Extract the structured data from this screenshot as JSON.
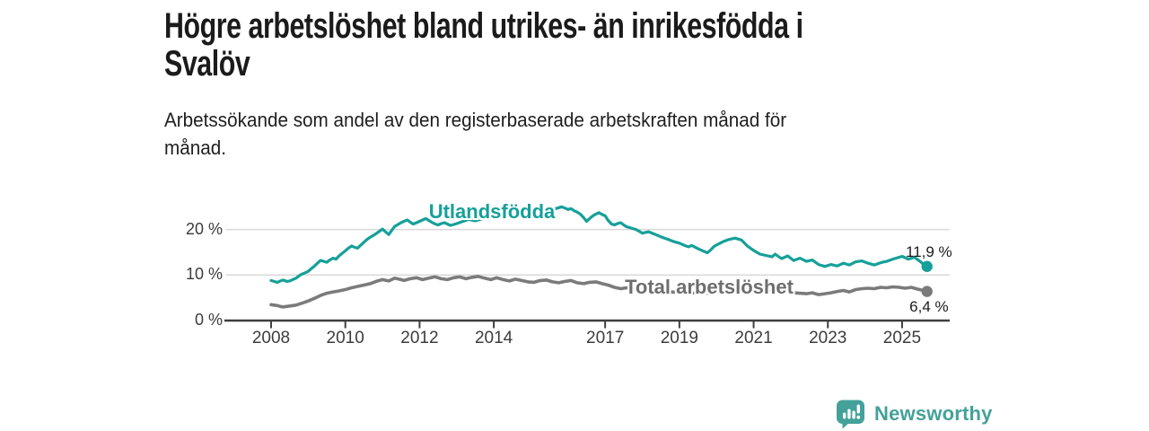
{
  "header": {
    "title_lines": [
      "Högre arbetslöshet bland utrikes- än inrikesfödda i",
      "Svalöv"
    ],
    "subtitle_lines": [
      "Arbetssökande som andel av den registerbaserade arbetskraften månad för",
      "månad."
    ]
  },
  "theme": {
    "background": "#ffffff",
    "accent_teal": "#16a099",
    "series_gray": "#7b7b7b",
    "grid_color": "#d9d9d9",
    "axis_color": "#3f3f3f",
    "tick_text_color": "#3c3c3c",
    "annotation_color": "#1b1b1b",
    "logo_color": "#44a19a"
  },
  "chart_data": {
    "type": "line",
    "title": "Högre arbetslöshet bland utrikes- än inrikesfödda i Svalöv",
    "subtitle": "Arbetssökande som andel av den registerbaserade arbetskraften månad för månad.",
    "xlabel": "",
    "ylabel": "",
    "grid": "horizontal-only",
    "x_axis": {
      "ticks": [
        2008,
        2010,
        2012,
        2014,
        2017,
        2019,
        2021,
        2023,
        2025
      ]
    },
    "y_axis": {
      "ticks": [
        {
          "value": 0,
          "label": "0 %"
        },
        {
          "value": 10,
          "label": "10 %"
        },
        {
          "value": 20,
          "label": "20 %"
        }
      ],
      "max": 26
    },
    "series": [
      {
        "name": "Utlandsfödda",
        "color": "#16a099",
        "label_color": "#16a099",
        "end_label": "11,9 %",
        "end_value": 11.9,
        "points": [
          [
            2008.0,
            8.8
          ],
          [
            2008.08,
            8.6
          ],
          [
            2008.17,
            8.4
          ],
          [
            2008.25,
            8.7
          ],
          [
            2008.33,
            8.9
          ],
          [
            2008.42,
            8.6
          ],
          [
            2008.5,
            8.7
          ],
          [
            2008.58,
            9.0
          ],
          [
            2008.67,
            9.3
          ],
          [
            2008.75,
            9.8
          ],
          [
            2008.83,
            10.2
          ],
          [
            2008.92,
            10.5
          ],
          [
            2009.0,
            10.8
          ],
          [
            2009.08,
            11.4
          ],
          [
            2009.17,
            12.0
          ],
          [
            2009.25,
            12.6
          ],
          [
            2009.33,
            13.2
          ],
          [
            2009.42,
            13.0
          ],
          [
            2009.5,
            12.8
          ],
          [
            2009.58,
            13.3
          ],
          [
            2009.67,
            13.7
          ],
          [
            2009.75,
            13.5
          ],
          [
            2009.83,
            14.2
          ],
          [
            2009.92,
            14.8
          ],
          [
            2010.0,
            15.3
          ],
          [
            2010.08,
            15.9
          ],
          [
            2010.17,
            16.4
          ],
          [
            2010.25,
            16.1
          ],
          [
            2010.33,
            15.9
          ],
          [
            2010.42,
            16.6
          ],
          [
            2010.5,
            17.2
          ],
          [
            2010.58,
            17.8
          ],
          [
            2010.67,
            18.3
          ],
          [
            2010.75,
            18.7
          ],
          [
            2010.83,
            19.1
          ],
          [
            2010.92,
            19.6
          ],
          [
            2011.0,
            20.1
          ],
          [
            2011.08,
            19.5
          ],
          [
            2011.17,
            18.9
          ],
          [
            2011.25,
            19.8
          ],
          [
            2011.33,
            20.7
          ],
          [
            2011.42,
            21.1
          ],
          [
            2011.5,
            21.5
          ],
          [
            2011.58,
            21.8
          ],
          [
            2011.67,
            22.1
          ],
          [
            2011.75,
            21.6
          ],
          [
            2011.83,
            21.2
          ],
          [
            2011.92,
            21.5
          ],
          [
            2012.0,
            21.8
          ],
          [
            2012.08,
            22.1
          ],
          [
            2012.17,
            22.4
          ],
          [
            2012.25,
            22.0
          ],
          [
            2012.33,
            21.6
          ],
          [
            2012.42,
            21.2
          ],
          [
            2012.5,
            21.0
          ],
          [
            2012.58,
            21.3
          ],
          [
            2012.67,
            21.5
          ],
          [
            2012.75,
            21.2
          ],
          [
            2012.83,
            20.9
          ],
          [
            2012.92,
            21.1
          ],
          [
            2013.0,
            21.3
          ],
          [
            2013.17,
            21.8
          ],
          [
            2013.33,
            22.2
          ],
          [
            2013.5,
            21.9
          ],
          [
            2013.67,
            22.3
          ],
          [
            2013.83,
            22.6
          ],
          [
            2014.0,
            22.9
          ],
          [
            2014.17,
            23.2
          ],
          [
            2014.33,
            22.9
          ],
          [
            2014.5,
            23.3
          ],
          [
            2014.67,
            23.6
          ],
          [
            2014.83,
            23.4
          ],
          [
            2015.0,
            23.8
          ],
          [
            2015.17,
            24.1
          ],
          [
            2015.33,
            23.9
          ],
          [
            2015.5,
            24.2
          ],
          [
            2015.67,
            24.6
          ],
          [
            2015.83,
            25.0
          ],
          [
            2015.92,
            24.7
          ],
          [
            2016.0,
            24.4
          ],
          [
            2016.08,
            24.6
          ],
          [
            2016.17,
            24.1
          ],
          [
            2016.25,
            23.8
          ],
          [
            2016.33,
            23.4
          ],
          [
            2016.42,
            22.6
          ],
          [
            2016.5,
            21.8
          ],
          [
            2016.58,
            22.4
          ],
          [
            2016.67,
            23.0
          ],
          [
            2016.75,
            23.4
          ],
          [
            2016.83,
            23.7
          ],
          [
            2016.92,
            23.3
          ],
          [
            2017.0,
            23.0
          ],
          [
            2017.08,
            22.0
          ],
          [
            2017.17,
            21.2
          ],
          [
            2017.25,
            21.0
          ],
          [
            2017.33,
            21.3
          ],
          [
            2017.42,
            21.5
          ],
          [
            2017.5,
            21.0
          ],
          [
            2017.58,
            20.6
          ],
          [
            2017.67,
            20.4
          ],
          [
            2017.75,
            20.2
          ],
          [
            2017.83,
            20.0
          ],
          [
            2017.92,
            19.6
          ],
          [
            2018.0,
            19.2
          ],
          [
            2018.17,
            19.5
          ],
          [
            2018.33,
            19.0
          ],
          [
            2018.5,
            18.4
          ],
          [
            2018.67,
            17.9
          ],
          [
            2018.83,
            17.4
          ],
          [
            2019.0,
            17.0
          ],
          [
            2019.17,
            16.4
          ],
          [
            2019.25,
            16.2
          ],
          [
            2019.33,
            16.5
          ],
          [
            2019.5,
            15.8
          ],
          [
            2019.58,
            15.5
          ],
          [
            2019.75,
            14.9
          ],
          [
            2019.83,
            15.4
          ],
          [
            2019.92,
            16.2
          ],
          [
            2020.0,
            16.6
          ],
          [
            2020.17,
            17.3
          ],
          [
            2020.33,
            17.8
          ],
          [
            2020.5,
            18.1
          ],
          [
            2020.67,
            17.7
          ],
          [
            2020.83,
            16.4
          ],
          [
            2021.0,
            15.4
          ],
          [
            2021.08,
            15.0
          ],
          [
            2021.17,
            14.6
          ],
          [
            2021.33,
            14.3
          ],
          [
            2021.5,
            14.0
          ],
          [
            2021.58,
            14.6
          ],
          [
            2021.75,
            13.6
          ],
          [
            2021.92,
            14.2
          ],
          [
            2022.08,
            13.2
          ],
          [
            2022.25,
            13.7
          ],
          [
            2022.42,
            13.0
          ],
          [
            2022.58,
            13.3
          ],
          [
            2022.75,
            12.3
          ],
          [
            2022.92,
            11.9
          ],
          [
            2023.08,
            12.3
          ],
          [
            2023.25,
            12.0
          ],
          [
            2023.42,
            12.6
          ],
          [
            2023.58,
            12.2
          ],
          [
            2023.75,
            12.9
          ],
          [
            2023.92,
            13.1
          ],
          [
            2024.08,
            12.6
          ],
          [
            2024.25,
            12.2
          ],
          [
            2024.42,
            12.7
          ],
          [
            2024.58,
            13.0
          ],
          [
            2024.75,
            13.5
          ],
          [
            2024.92,
            13.9
          ],
          [
            2025.0,
            14.1
          ],
          [
            2025.17,
            13.5
          ],
          [
            2025.33,
            13.9
          ],
          [
            2025.5,
            12.9
          ],
          [
            2025.58,
            12.3
          ],
          [
            2025.67,
            11.9
          ]
        ]
      },
      {
        "name": "Total arbetslöshet",
        "color": "#7b7b7b",
        "label_color": "#6e6e6e",
        "end_label": "6,4 %",
        "end_value": 6.4,
        "points": [
          [
            2008.0,
            3.5
          ],
          [
            2008.17,
            3.3
          ],
          [
            2008.25,
            3.1
          ],
          [
            2008.33,
            3.0
          ],
          [
            2008.5,
            3.2
          ],
          [
            2008.67,
            3.4
          ],
          [
            2008.83,
            3.8
          ],
          [
            2009.0,
            4.3
          ],
          [
            2009.17,
            4.9
          ],
          [
            2009.33,
            5.5
          ],
          [
            2009.5,
            6.0
          ],
          [
            2009.67,
            6.3
          ],
          [
            2009.83,
            6.5
          ],
          [
            2010.0,
            6.8
          ],
          [
            2010.17,
            7.2
          ],
          [
            2010.33,
            7.5
          ],
          [
            2010.5,
            7.8
          ],
          [
            2010.67,
            8.1
          ],
          [
            2010.83,
            8.6
          ],
          [
            2011.0,
            9.0
          ],
          [
            2011.17,
            8.7
          ],
          [
            2011.33,
            9.3
          ],
          [
            2011.5,
            9.0
          ],
          [
            2011.58,
            8.8
          ],
          [
            2011.75,
            9.2
          ],
          [
            2011.92,
            9.4
          ],
          [
            2012.08,
            9.0
          ],
          [
            2012.25,
            9.3
          ],
          [
            2012.42,
            9.6
          ],
          [
            2012.58,
            9.2
          ],
          [
            2012.75,
            9.0
          ],
          [
            2012.92,
            9.4
          ],
          [
            2013.08,
            9.6
          ],
          [
            2013.25,
            9.2
          ],
          [
            2013.42,
            9.5
          ],
          [
            2013.58,
            9.7
          ],
          [
            2013.75,
            9.3
          ],
          [
            2013.92,
            9.0
          ],
          [
            2014.08,
            9.4
          ],
          [
            2014.25,
            9.0
          ],
          [
            2014.42,
            8.7
          ],
          [
            2014.58,
            9.1
          ],
          [
            2014.75,
            8.8
          ],
          [
            2014.92,
            8.5
          ],
          [
            2015.08,
            8.4
          ],
          [
            2015.25,
            8.8
          ],
          [
            2015.42,
            8.9
          ],
          [
            2015.58,
            8.5
          ],
          [
            2015.75,
            8.3
          ],
          [
            2015.92,
            8.6
          ],
          [
            2016.08,
            8.8
          ],
          [
            2016.25,
            8.3
          ],
          [
            2016.42,
            8.1
          ],
          [
            2016.58,
            8.4
          ],
          [
            2016.75,
            8.5
          ],
          [
            2016.92,
            8.1
          ],
          [
            2017.08,
            7.8
          ],
          [
            2017.25,
            7.3
          ],
          [
            2017.42,
            7.0
          ],
          [
            2017.58,
            7.2
          ],
          [
            2017.75,
            6.9
          ],
          [
            2017.92,
            6.7
          ],
          [
            2018.08,
            6.9
          ],
          [
            2018.25,
            6.6
          ],
          [
            2018.42,
            6.4
          ],
          [
            2018.58,
            6.6
          ],
          [
            2018.75,
            6.3
          ],
          [
            2018.92,
            6.2
          ],
          [
            2019.08,
            6.4
          ],
          [
            2019.25,
            6.2
          ],
          [
            2019.42,
            6.0
          ],
          [
            2019.58,
            6.2
          ],
          [
            2019.75,
            6.0
          ],
          [
            2019.92,
            6.3
          ],
          [
            2020.08,
            6.8
          ],
          [
            2020.25,
            7.3
          ],
          [
            2020.42,
            7.6
          ],
          [
            2020.58,
            7.5
          ],
          [
            2020.75,
            7.3
          ],
          [
            2020.92,
            7.2
          ],
          [
            2021.08,
            7.0
          ],
          [
            2021.25,
            6.8
          ],
          [
            2021.42,
            6.6
          ],
          [
            2021.58,
            6.7
          ],
          [
            2021.75,
            6.4
          ],
          [
            2021.92,
            6.3
          ],
          [
            2022.08,
            6.1
          ],
          [
            2022.25,
            6.0
          ],
          [
            2022.42,
            5.9
          ],
          [
            2022.58,
            6.1
          ],
          [
            2022.75,
            5.7
          ],
          [
            2022.92,
            5.9
          ],
          [
            2023.08,
            6.1
          ],
          [
            2023.25,
            6.4
          ],
          [
            2023.42,
            6.6
          ],
          [
            2023.58,
            6.3
          ],
          [
            2023.75,
            6.8
          ],
          [
            2023.92,
            7.0
          ],
          [
            2024.08,
            7.1
          ],
          [
            2024.25,
            7.0
          ],
          [
            2024.42,
            7.3
          ],
          [
            2024.58,
            7.2
          ],
          [
            2024.75,
            7.4
          ],
          [
            2024.92,
            7.3
          ],
          [
            2025.08,
            7.1
          ],
          [
            2025.25,
            7.3
          ],
          [
            2025.42,
            6.9
          ],
          [
            2025.58,
            6.6
          ],
          [
            2025.67,
            6.4
          ]
        ]
      }
    ]
  },
  "branding": {
    "logo_text": "Newsworthy",
    "logo_icon": "bar-chart-speech-bubble-icon"
  }
}
